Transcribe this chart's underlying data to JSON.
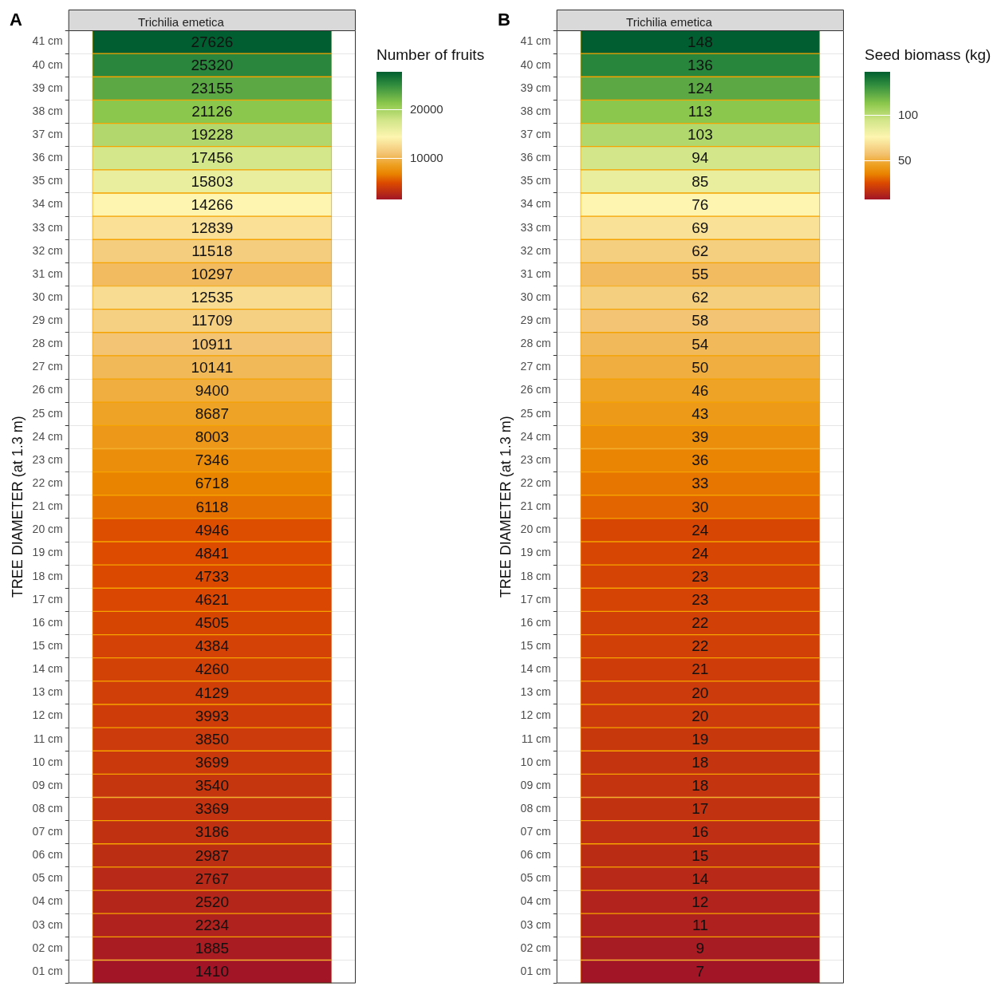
{
  "chart_data": [
    {
      "type": "heatmap",
      "title": "Trichilia emetica",
      "ylabel": "TREE DIAMETER (at 1.3 m)",
      "clabel": "Number of fruits",
      "annotations": [
        "A"
      ],
      "categories": [
        null
      ],
      "y_categories": [
        "41 cm",
        "40 cm",
        "39 cm",
        "38 cm",
        "37 cm",
        "36 cm",
        "35 cm",
        "34 cm",
        "33 cm",
        "32 cm",
        "31 cm",
        "30 cm",
        "29 cm",
        "28 cm",
        "27 cm",
        "26 cm",
        "25 cm",
        "24 cm",
        "23 cm",
        "22 cm",
        "21 cm",
        "20 cm",
        "19 cm",
        "18 cm",
        "17 cm",
        "16 cm",
        "15 cm",
        "14 cm",
        "13 cm",
        "12 cm",
        "11 cm",
        "10 cm",
        "09 cm",
        "08 cm",
        "07 cm",
        "06 cm",
        "05 cm",
        "04 cm",
        "03 cm",
        "02 cm",
        "01 cm"
      ],
      "cells": [
        [
          27626
        ],
        [
          25320
        ],
        [
          23155
        ],
        [
          21126
        ],
        [
          19228
        ],
        [
          17456
        ],
        [
          15803
        ],
        [
          14266
        ],
        [
          12839
        ],
        [
          11518
        ],
        [
          10297
        ],
        [
          12535
        ],
        [
          11709
        ],
        [
          10911
        ],
        [
          10141
        ],
        [
          9400
        ],
        [
          8687
        ],
        [
          8003
        ],
        [
          7346
        ],
        [
          6718
        ],
        [
          6118
        ],
        [
          4946
        ],
        [
          4841
        ],
        [
          4733
        ],
        [
          4621
        ],
        [
          4505
        ],
        [
          4384
        ],
        [
          4260
        ],
        [
          4129
        ],
        [
          3993
        ],
        [
          3850
        ],
        [
          3699
        ],
        [
          3540
        ],
        [
          3369
        ],
        [
          3186
        ],
        [
          2987
        ],
        [
          2767
        ],
        [
          2520
        ],
        [
          2234
        ],
        [
          1885
        ],
        [
          1410
        ]
      ],
      "clim": [
        1410,
        27626
      ],
      "cticks": [
        10000,
        20000
      ],
      "data_labels": true,
      "grid": "y"
    },
    {
      "type": "heatmap",
      "title": "Trichilia emetica",
      "ylabel": "TREE DIAMETER (at 1.3 m)",
      "clabel": "Seed biomass (kg)",
      "annotations": [
        "B"
      ],
      "categories": [
        null
      ],
      "y_categories": [
        "41 cm",
        "40 cm",
        "39 cm",
        "38 cm",
        "37 cm",
        "36 cm",
        "35 cm",
        "34 cm",
        "33 cm",
        "32 cm",
        "31 cm",
        "30 cm",
        "29 cm",
        "28 cm",
        "27 cm",
        "26 cm",
        "25 cm",
        "24 cm",
        "23 cm",
        "22 cm",
        "21 cm",
        "20 cm",
        "19 cm",
        "18 cm",
        "17 cm",
        "16 cm",
        "15 cm",
        "14 cm",
        "13 cm",
        "12 cm",
        "11 cm",
        "10 cm",
        "09 cm",
        "08 cm",
        "07 cm",
        "06 cm",
        "05 cm",
        "04 cm",
        "03 cm",
        "02 cm",
        "01 cm"
      ],
      "cells": [
        [
          148
        ],
        [
          136
        ],
        [
          124
        ],
        [
          113
        ],
        [
          103
        ],
        [
          94
        ],
        [
          85
        ],
        [
          76
        ],
        [
          69
        ],
        [
          62
        ],
        [
          55
        ],
        [
          62
        ],
        [
          58
        ],
        [
          54
        ],
        [
          50
        ],
        [
          46
        ],
        [
          43
        ],
        [
          39
        ],
        [
          36
        ],
        [
          33
        ],
        [
          30
        ],
        [
          24
        ],
        [
          24
        ],
        [
          23
        ],
        [
          23
        ],
        [
          22
        ],
        [
          22
        ],
        [
          21
        ],
        [
          20
        ],
        [
          20
        ],
        [
          19
        ],
        [
          18
        ],
        [
          18
        ],
        [
          17
        ],
        [
          16
        ],
        [
          15
        ],
        [
          14
        ],
        [
          12
        ],
        [
          11
        ],
        [
          9
        ],
        [
          7
        ]
      ],
      "clim": [
        7,
        148
      ],
      "cticks": [
        50,
        100
      ],
      "data_labels": true,
      "grid": "y"
    }
  ]
}
